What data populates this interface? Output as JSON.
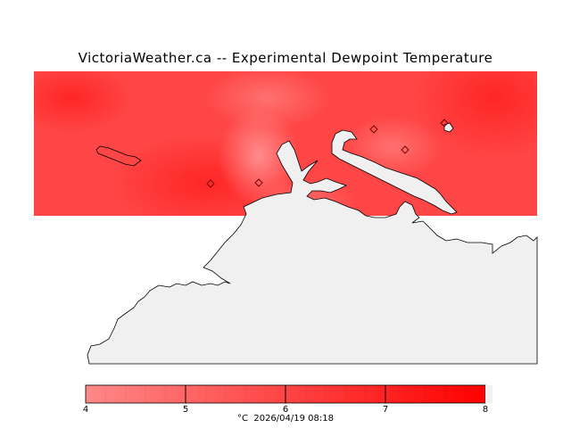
{
  "title": "VictoriaWeather.ca -- Experimental Dewpoint Temperature",
  "colorbar": {
    "min": 4,
    "max": 8,
    "ticks": [
      "4",
      "5",
      "6",
      "7",
      "8"
    ],
    "low_color": "#ff8888",
    "high_color": "#ff0000"
  },
  "caption": {
    "unit": "°C",
    "timestamp": "2026/04/19 08:18"
  },
  "colors": {
    "field_base": "#ff4444",
    "land": "#f0f0f0",
    "coast": "#000000"
  }
}
